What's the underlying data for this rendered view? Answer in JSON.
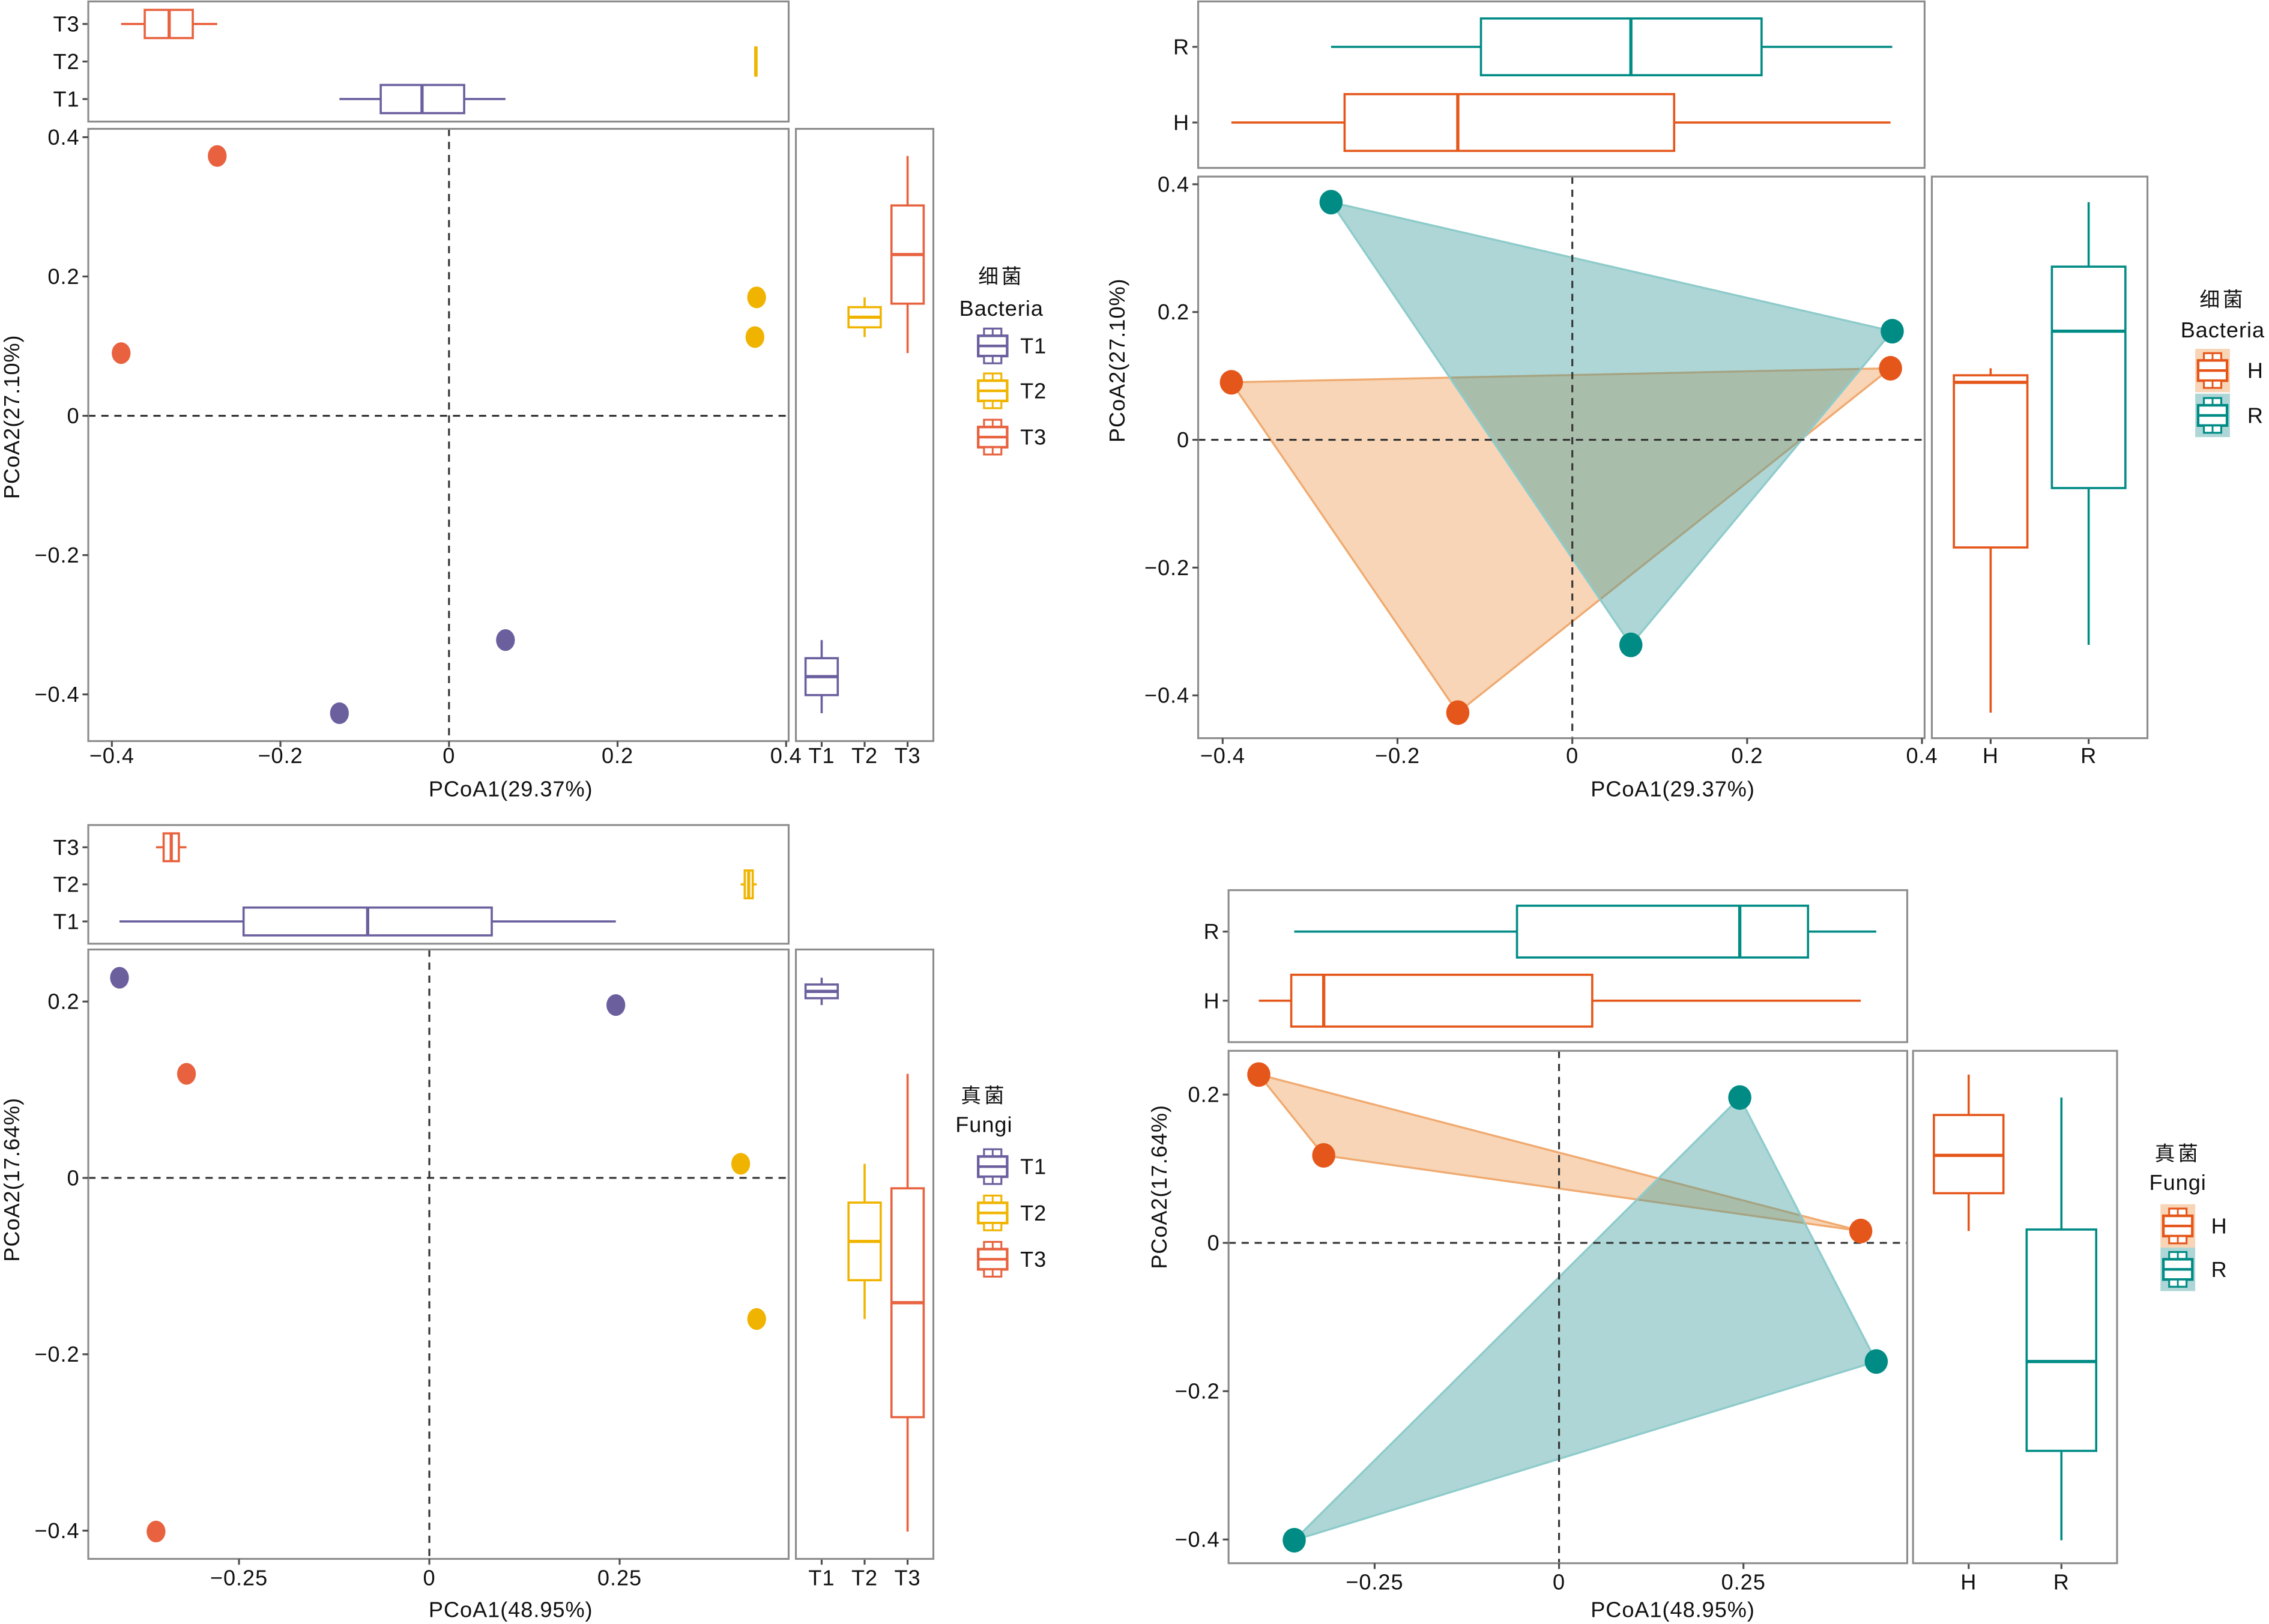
{
  "chart_data": [
    {
      "type": "scatter",
      "title": "",
      "xlabel": "PCoA1(29.37%)",
      "ylabel": "PCoA2(27.10%)",
      "xlim": [
        -0.428,
        0.403
      ],
      "ylim": [
        -0.467,
        0.412
      ],
      "xticks": [
        -0.4,
        -0.2,
        0,
        0.2,
        0.4
      ],
      "xtick_labels": [
        "−0.4",
        "−0.2",
        "0",
        "0.2",
        "0.4"
      ],
      "yticks": [
        -0.4,
        -0.2,
        0,
        0.2,
        0.4
      ],
      "ytick_labels": [
        "−0.4",
        "−0.2",
        "0",
        "0.2",
        "0.4"
      ],
      "grid": false,
      "reference_lines": {
        "x": 0,
        "y": 0,
        "style": "dashed"
      },
      "convex_hulls": false,
      "legend": {
        "title": "细菌",
        "subtitle": "Bacteria",
        "placement": "right",
        "entries": [
          "T1",
          "T2",
          "T3"
        ]
      },
      "series": [
        {
          "name": "T1",
          "color": "#6b5f9e",
          "points": [
            [
              -0.13,
              -0.427
            ],
            [
              0.067,
              -0.322
            ]
          ]
        },
        {
          "name": "T2",
          "color": "#f0b400",
          "points": [
            [
              0.365,
              0.17
            ],
            [
              0.363,
              0.113
            ]
          ]
        },
        {
          "name": "T3",
          "color": "#e8623f",
          "points": [
            [
              -0.275,
              0.373
            ],
            [
              -0.389,
              0.09
            ]
          ]
        }
      ],
      "marginal_boxplots": {
        "top": {
          "value_axis": "PCoA1",
          "categories": [
            "T1",
            "T2",
            "T3"
          ],
          "boxes": [
            {
              "group": "T1",
              "min": -0.13,
              "q1": -0.081,
              "median": -0.032,
              "q3": 0.018,
              "max": 0.067
            },
            {
              "group": "T2",
              "min": 0.363,
              "q1": 0.3635,
              "median": 0.364,
              "q3": 0.3645,
              "max": 0.365
            },
            {
              "group": "T3",
              "min": -0.389,
              "q1": -0.361,
              "median": -0.332,
              "q3": -0.304,
              "max": -0.275
            }
          ]
        },
        "right": {
          "value_axis": "PCoA2",
          "categories": [
            "T1",
            "T2",
            "T3"
          ],
          "boxes": [
            {
              "group": "T1",
              "min": -0.427,
              "q1": -0.401,
              "median": -0.3745,
              "q3": -0.348,
              "max": -0.322
            },
            {
              "group": "T2",
              "min": 0.113,
              "q1": 0.127,
              "median": 0.1415,
              "q3": 0.156,
              "max": 0.17
            },
            {
              "group": "T3",
              "min": 0.09,
              "q1": 0.161,
              "median": 0.2315,
              "q3": 0.302,
              "max": 0.373
            }
          ]
        }
      }
    },
    {
      "type": "scatter",
      "title": "",
      "xlabel": "PCoA1(29.37%)",
      "ylabel": "PCoA2(27.10%)",
      "xlim": [
        -0.428,
        0.403
      ],
      "ylim": [
        -0.467,
        0.412
      ],
      "xticks": [
        -0.4,
        -0.2,
        0,
        0.2,
        0.4
      ],
      "xtick_labels": [
        "−0.4",
        "−0.2",
        "0",
        "0.2",
        "0.4"
      ],
      "yticks": [
        -0.4,
        -0.2,
        0,
        0.2,
        0.4
      ],
      "ytick_labels": [
        "−0.4",
        "−0.2",
        "0",
        "0.2",
        "0.4"
      ],
      "grid": false,
      "reference_lines": {
        "x": 0,
        "y": 0,
        "style": "dashed"
      },
      "convex_hulls": true,
      "legend": {
        "title": "细菌",
        "subtitle": "Bacteria",
        "placement": "right",
        "entries": [
          "H",
          "R"
        ]
      },
      "series": [
        {
          "name": "H",
          "color": "#e5561a",
          "hull_fill": "#ec9a50",
          "hull_stroke": "#f0aa70",
          "points": [
            [
              -0.39,
              0.09
            ],
            [
              -0.131,
              -0.427
            ],
            [
              0.364,
              0.112
            ]
          ]
        },
        {
          "name": "R",
          "color": "#008b85",
          "hull_fill": "#3d9e9e",
          "hull_stroke": "#8ecbcb",
          "points": [
            [
              -0.276,
              0.372
            ],
            [
              0.366,
              0.17
            ],
            [
              0.067,
              -0.321
            ]
          ]
        }
      ],
      "marginal_boxplots": {
        "top": {
          "value_axis": "PCoA1",
          "categories": [
            "H",
            "R"
          ],
          "boxes": [
            {
              "group": "H",
              "min": -0.39,
              "q1": -0.2605,
              "median": -0.131,
              "q3": 0.1165,
              "max": 0.364
            },
            {
              "group": "R",
              "min": -0.276,
              "q1": -0.1045,
              "median": 0.067,
              "q3": 0.2165,
              "max": 0.366
            }
          ]
        },
        "right": {
          "value_axis": "PCoA2",
          "categories": [
            "H",
            "R"
          ],
          "boxes": [
            {
              "group": "H",
              "min": -0.427,
              "q1": -0.1685,
              "median": 0.09,
              "q3": 0.101,
              "max": 0.112
            },
            {
              "group": "R",
              "min": -0.321,
              "q1": -0.0755,
              "median": 0.17,
              "q3": 0.271,
              "max": 0.372
            }
          ]
        }
      }
    },
    {
      "type": "scatter",
      "title": "",
      "xlabel": "PCoA1(48.95%)",
      "ylabel": "PCoA2(17.64%)",
      "xlim": [
        -0.448,
        0.472
      ],
      "ylim": [
        -0.432,
        0.259
      ],
      "xticks": [
        -0.25,
        0,
        0.25
      ],
      "xtick_labels": [
        "−0.25",
        "0",
        "0.25"
      ],
      "yticks": [
        -0.4,
        -0.2,
        0,
        0.2
      ],
      "ytick_labels": [
        "−0.4",
        "−0.2",
        "0",
        "0.2"
      ],
      "grid": false,
      "reference_lines": {
        "x": 0,
        "y": 0,
        "style": "dashed"
      },
      "convex_hulls": false,
      "legend": {
        "title": "真菌",
        "subtitle": "Fungi",
        "placement": "right",
        "entries": [
          "T1",
          "T2",
          "T3"
        ]
      },
      "series": [
        {
          "name": "T1",
          "color": "#6b5f9e",
          "points": [
            [
              -0.407,
              0.227
            ],
            [
              0.245,
              0.196
            ]
          ]
        },
        {
          "name": "T2",
          "color": "#f0b400",
          "points": [
            [
              0.409,
              0.016
            ],
            [
              0.43,
              -0.16
            ]
          ]
        },
        {
          "name": "T3",
          "color": "#e8623f",
          "points": [
            [
              -0.319,
              0.118
            ],
            [
              -0.359,
              -0.401
            ]
          ]
        }
      ],
      "marginal_boxplots": {
        "top": {
          "value_axis": "PCoA1",
          "categories": [
            "T1",
            "T2",
            "T3"
          ],
          "boxes": [
            {
              "group": "T1",
              "min": -0.407,
              "q1": -0.244,
              "median": -0.081,
              "q3": 0.082,
              "max": 0.245
            },
            {
              "group": "T2",
              "min": 0.409,
              "q1": 0.4143,
              "median": 0.4195,
              "q3": 0.4248,
              "max": 0.43
            },
            {
              "group": "T3",
              "min": -0.359,
              "q1": -0.349,
              "median": -0.339,
              "q3": -0.329,
              "max": -0.319
            }
          ]
        },
        "right": {
          "value_axis": "PCoA2",
          "categories": [
            "T1",
            "T2",
            "T3"
          ],
          "boxes": [
            {
              "group": "T1",
              "min": 0.196,
              "q1": 0.2038,
              "median": 0.2115,
              "q3": 0.2193,
              "max": 0.227
            },
            {
              "group": "T2",
              "min": -0.16,
              "q1": -0.116,
              "median": -0.072,
              "q3": -0.028,
              "max": 0.016
            },
            {
              "group": "T3",
              "min": -0.401,
              "q1": -0.2713,
              "median": -0.1415,
              "q3": -0.0118,
              "max": 0.118
            }
          ]
        }
      }
    },
    {
      "type": "scatter",
      "title": "",
      "xlabel": "PCoA1(48.95%)",
      "ylabel": "PCoA2(17.64%)",
      "xlim": [
        -0.448,
        0.472
      ],
      "ylim": [
        -0.432,
        0.259
      ],
      "xticks": [
        -0.25,
        0,
        0.25
      ],
      "xtick_labels": [
        "−0.25",
        "0",
        "0.25"
      ],
      "yticks": [
        -0.4,
        -0.2,
        0,
        0.2
      ],
      "ytick_labels": [
        "−0.4",
        "−0.2",
        "0",
        "0.2"
      ],
      "grid": false,
      "reference_lines": {
        "x": 0,
        "y": 0,
        "style": "dashed"
      },
      "convex_hulls": true,
      "legend": {
        "title": "真菌",
        "subtitle": "Fungi",
        "placement": "right",
        "entries": [
          "H",
          "R"
        ]
      },
      "series": [
        {
          "name": "H",
          "color": "#e5561a",
          "hull_fill": "#ec9a50",
          "hull_stroke": "#f0aa70",
          "points": [
            [
              -0.407,
              0.227
            ],
            [
              -0.319,
              0.118
            ],
            [
              0.409,
              0.016
            ]
          ]
        },
        {
          "name": "R",
          "color": "#008b85",
          "hull_fill": "#3d9e9e",
          "hull_stroke": "#8ecbcb",
          "points": [
            [
              0.245,
              0.196
            ],
            [
              0.43,
              -0.16
            ],
            [
              -0.359,
              -0.401
            ]
          ]
        }
      ],
      "marginal_boxplots": {
        "top": {
          "value_axis": "PCoA1",
          "categories": [
            "H",
            "R"
          ],
          "boxes": [
            {
              "group": "H",
              "min": -0.407,
              "q1": -0.363,
              "median": -0.319,
              "q3": 0.045,
              "max": 0.409
            },
            {
              "group": "R",
              "min": -0.359,
              "q1": -0.057,
              "median": 0.245,
              "q3": 0.3375,
              "max": 0.43
            }
          ]
        },
        "right": {
          "value_axis": "PCoA2",
          "categories": [
            "H",
            "R"
          ],
          "boxes": [
            {
              "group": "H",
              "min": 0.016,
              "q1": 0.067,
              "median": 0.118,
              "q3": 0.1725,
              "max": 0.227
            },
            {
              "group": "R",
              "min": -0.401,
              "q1": -0.2805,
              "median": -0.16,
              "q3": 0.018,
              "max": 0.196
            }
          ]
        }
      }
    }
  ]
}
